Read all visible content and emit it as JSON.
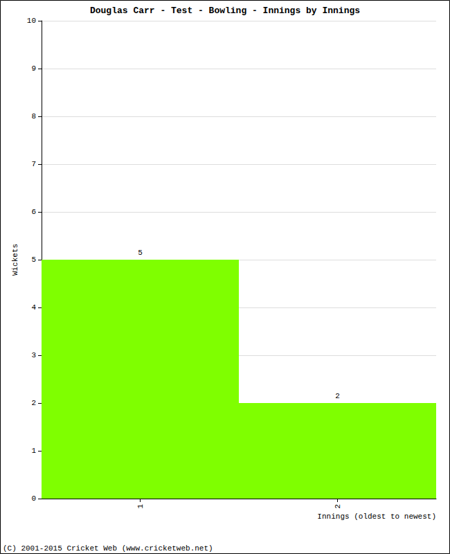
{
  "chart_data": {
    "type": "bar",
    "title": "Douglas Carr - Test - Bowling - Innings by Innings",
    "xlabel": "Innings (oldest to newest)",
    "ylabel": "Wickets",
    "categories": [
      "1",
      "2"
    ],
    "values": [
      5,
      2
    ],
    "color": "#7fff00",
    "ylim": [
      0,
      10
    ],
    "yticks": [
      0,
      1,
      2,
      3,
      4,
      5,
      6,
      7,
      8,
      9,
      10
    ],
    "grid": true,
    "data_labels": true,
    "annotations": [
      "(C) 2001-2015 Cricket Web (www.cricketweb.net)"
    ]
  }
}
